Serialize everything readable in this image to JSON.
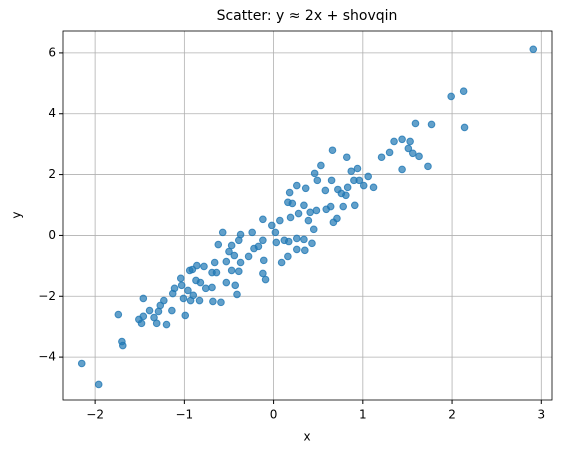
{
  "chart_data": {
    "type": "scatter",
    "title": "Scatter: y ≈ 2x + shovqin",
    "xlabel": "x",
    "ylabel": "y",
    "color": "#1f77b4",
    "grid": true,
    "xlim": [
      -2.36,
      3.12
    ],
    "ylim": [
      -5.41,
      6.72
    ],
    "xticks": [
      {
        "value": -2,
        "label": "−2"
      },
      {
        "value": -1,
        "label": "−1"
      },
      0,
      1,
      2,
      3
    ],
    "yticks": [
      {
        "value": -4,
        "label": "−4"
      },
      {
        "value": -2,
        "label": "−2"
      },
      0,
      2,
      4,
      6
    ],
    "x": [
      2.91,
      1.99,
      2.13,
      2.14,
      -2.15,
      -1.96,
      -1.69,
      -1.7,
      -1.74,
      -1.48,
      -1.46,
      -1.31,
      -1.2,
      -1.29,
      -1.23,
      -1.13,
      -1.03,
      -0.99,
      -1.04,
      -0.94,
      -0.9,
      -0.83,
      -0.82,
      1.59,
      1.77,
      1.53,
      1.35,
      1.44,
      1.51,
      1.56,
      1.63,
      1.73,
      1.3,
      1.21,
      1.44,
      1.12,
      0.94,
      0.87,
      0.82,
      0.66,
      0.53,
      0.46,
      0.49,
      0.65,
      0.72,
      0.83,
      0.9,
      0.76,
      0.78,
      0.91,
      1.01,
      1.06,
      0.64,
      0.59,
      0.48,
      0.41,
      0.36,
      0.26,
      0.18,
      0.21,
      0.28,
      0.34,
      0.16,
      0.07,
      -0.12,
      -0.02,
      0.02,
      0.19,
      0.26,
      0.12,
      0.34,
      0.45,
      0.39,
      0.17,
      0.16,
      0.35,
      0.26,
      0.03,
      -0.12,
      -0.17,
      -0.24,
      -0.22,
      -0.11,
      -0.09,
      -0.12,
      -0.37,
      -0.39,
      -0.47,
      -0.44,
      -0.5,
      -0.53,
      -0.37,
      -0.28,
      -0.57,
      -0.62,
      -0.47,
      -0.39,
      -0.43,
      -0.41,
      -0.53,
      -0.64,
      -0.69,
      -0.69,
      -0.68,
      -0.76,
      -0.66,
      -0.78,
      -0.86,
      -0.91,
      -0.87,
      -0.96,
      -0.93,
      -1.11,
      -1.01,
      -1.14,
      -1.27,
      -1.39,
      -1.34,
      -1.51,
      -1.46,
      -0.59,
      0.67,
      0.81,
      0.96,
      0.09,
      0.43,
      0.71,
      0.58
    ],
    "values": [
      6.12,
      4.57,
      4.74,
      3.55,
      -4.21,
      -4.9,
      -3.62,
      -3.49,
      -2.6,
      -2.89,
      -2.07,
      -2.89,
      -2.93,
      -2.5,
      -2.14,
      -1.91,
      -1.64,
      -2.63,
      -1.41,
      -1.15,
      -1.97,
      -2.14,
      -1.55,
      3.68,
      3.65,
      3.09,
      3.09,
      3.16,
      2.86,
      2.7,
      2.6,
      2.27,
      2.73,
      2.57,
      2.17,
      1.58,
      2.2,
      2.11,
      2.57,
      2.8,
      2.3,
      2.04,
      1.81,
      1.81,
      1.51,
      1.58,
      1.81,
      1.38,
      0.95,
      0.99,
      1.64,
      1.94,
      0.95,
      0.86,
      0.82,
      0.76,
      1.55,
      1.64,
      1.41,
      1.05,
      0.72,
      0.99,
      1.09,
      0.49,
      0.53,
      0.33,
      0.1,
      0.59,
      -0.1,
      -0.16,
      -0.13,
      0.2,
      0.49,
      -0.2,
      -0.69,
      -0.49,
      -0.46,
      -0.23,
      -0.16,
      -0.36,
      0.1,
      -0.43,
      -0.82,
      -1.45,
      -1.25,
      0.03,
      -0.16,
      -0.33,
      -0.66,
      -0.53,
      -0.86,
      -0.89,
      -0.69,
      0.1,
      -0.3,
      -1.15,
      -1.18,
      -1.64,
      -1.94,
      -1.55,
      -1.22,
      -1.22,
      -1.71,
      -2.17,
      -1.74,
      -0.89,
      -1.02,
      -0.99,
      -1.12,
      -1.48,
      -1.81,
      -2.14,
      -1.74,
      -2.07,
      -2.47,
      -2.3,
      -2.47,
      -2.7,
      -2.76,
      -2.66,
      -2.2,
      0.43,
      1.32,
      1.81,
      -0.89,
      -0.26,
      0.56,
      1.48
    ]
  }
}
